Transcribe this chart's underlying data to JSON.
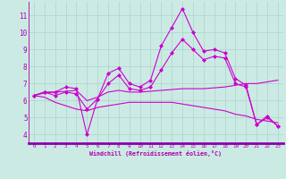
{
  "xlabel": "Windchill (Refroidissement éolien,°C)",
  "background_color": "#cceae4",
  "grid_color": "#aad4cc",
  "line_color": "#cc00cc",
  "spine_color": "#aa00aa",
  "xlim": [
    -0.5,
    23.5
  ],
  "ylim": [
    3.5,
    11.8
  ],
  "yticks": [
    4,
    5,
    6,
    7,
    8,
    9,
    10,
    11
  ],
  "xticks": [
    0,
    1,
    2,
    3,
    4,
    5,
    6,
    7,
    8,
    9,
    10,
    11,
    12,
    13,
    14,
    15,
    16,
    17,
    18,
    19,
    20,
    21,
    22,
    23
  ],
  "series": [
    {
      "y": [
        6.3,
        6.5,
        6.5,
        6.8,
        6.7,
        4.0,
        6.1,
        7.6,
        7.9,
        7.0,
        6.8,
        7.2,
        9.2,
        10.3,
        11.4,
        10.0,
        8.9,
        9.0,
        8.8,
        7.3,
        6.9,
        4.6,
        5.1,
        4.5
      ],
      "marker": "D",
      "markersize": 2.0,
      "linewidth": 0.8
    },
    {
      "y": [
        6.3,
        6.45,
        6.5,
        6.55,
        6.6,
        6.0,
        6.2,
        6.5,
        6.6,
        6.5,
        6.5,
        6.55,
        6.6,
        6.65,
        6.7,
        6.7,
        6.7,
        6.75,
        6.8,
        6.9,
        7.0,
        7.0,
        7.1,
        7.2
      ],
      "marker": null,
      "markersize": 0,
      "linewidth": 0.8
    },
    {
      "y": [
        6.3,
        6.2,
        5.9,
        5.7,
        5.5,
        5.4,
        5.6,
        5.7,
        5.8,
        5.9,
        5.9,
        5.9,
        5.9,
        5.9,
        5.8,
        5.7,
        5.6,
        5.5,
        5.4,
        5.2,
        5.1,
        4.9,
        4.8,
        4.7
      ],
      "marker": null,
      "markersize": 0,
      "linewidth": 0.8
    },
    {
      "y": [
        6.3,
        6.5,
        6.3,
        6.5,
        6.4,
        5.5,
        6.1,
        7.0,
        7.5,
        6.7,
        6.6,
        6.8,
        7.8,
        8.8,
        9.6,
        9.0,
        8.4,
        8.6,
        8.5,
        7.0,
        6.8,
        4.6,
        5.0,
        4.5
      ],
      "marker": "D",
      "markersize": 2.0,
      "linewidth": 0.8
    }
  ]
}
